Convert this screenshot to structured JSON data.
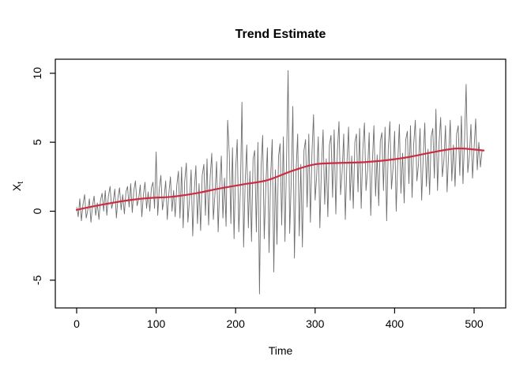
{
  "chart_data": {
    "type": "line",
    "title": "Trend Estimate",
    "xlabel": "Time",
    "ylabel": "X_t",
    "ylabel_main": "X",
    "ylabel_sub": "t",
    "xlim": [
      0,
      512
    ],
    "ylim": [
      -6.5,
      10.5
    ],
    "x_ticks": [
      0,
      100,
      200,
      300,
      400,
      500
    ],
    "y_ticks": [
      10,
      5,
      0,
      -5
    ],
    "grid": false,
    "legend": "none",
    "colors": {
      "observed": "#6e6e6e",
      "trend": "#cd2b42",
      "axis": "#000000"
    },
    "series": [
      {
        "name": "observed",
        "role": "noisy-series",
        "x_start": 0,
        "x_step": 2,
        "values": [
          0.3,
          -0.4,
          0.9,
          -0.7,
          0.5,
          1.2,
          -0.5,
          0.1,
          0.9,
          -0.8,
          0.4,
          1.1,
          -0.3,
          0.6,
          -0.6,
          0.8,
          1.3,
          0.0,
          1.5,
          -0.3,
          1.1,
          1.8,
          0.2,
          0.7,
          1.6,
          -0.5,
          1.0,
          1.7,
          0.1,
          1.2,
          -0.2,
          1.4,
          1.8,
          0.3,
          2.0,
          -0.1,
          1.5,
          2.2,
          0.4,
          0.9,
          1.9,
          -0.4,
          1.2,
          2.1,
          0.2,
          1.4,
          0.0,
          1.7,
          2.1,
          0.2,
          4.3,
          -0.3,
          1.6,
          2.6,
          0.1,
          1.0,
          2.2,
          -0.6,
          1.3,
          2.5,
          0.0,
          1.5,
          -0.4,
          1.9,
          2.9,
          -0.5,
          3.2,
          -1.2,
          2.2,
          3.5,
          -0.8,
          0.9,
          3.0,
          -1.8,
          1.5,
          3.3,
          -0.9,
          2.0,
          -1.4,
          2.6,
          3.4,
          -0.3,
          3.8,
          -1.0,
          2.5,
          4.2,
          -0.6,
          1.2,
          3.6,
          -1.5,
          1.9,
          4.0,
          -0.5,
          2.4,
          -1.1,
          6.6,
          4.1,
          -0.9,
          4.6,
          -2.0,
          3.0,
          5.2,
          -1.5,
          1.5,
          7.9,
          -2.6,
          2.2,
          4.8,
          -1.2,
          2.9,
          -2.2,
          3.8,
          4.4,
          -1.5,
          5.0,
          -6.0,
          3.2,
          5.5,
          -2.0,
          1.8,
          4.6,
          -3.0,
          2.5,
          5.2,
          -4.4,
          3.0,
          -2.4,
          4.0,
          4.9,
          -1.0,
          5.4,
          -2.2,
          3.6,
          10.2,
          -1.6,
          2.2,
          7.6,
          -3.4,
          2.9,
          5.6,
          -1.8,
          3.4,
          -2.6,
          4.4,
          5.2,
          0.3,
          5.6,
          -0.8,
          4.2,
          7.0,
          0.8,
          2.6,
          5.4,
          -1.2,
          3.2,
          5.9,
          0.5,
          3.8,
          -0.4,
          4.8,
          5.5,
          1.0,
          5.9,
          -0.2,
          4.4,
          6.5,
          1.2,
          2.9,
          5.6,
          -0.6,
          3.4,
          6.1,
          0.8,
          4.0,
          0.2,
          5.0,
          5.6,
          1.4,
          6.0,
          0.2,
          4.5,
          6.4,
          1.5,
          3.0,
          5.7,
          -0.3,
          3.5,
          6.2,
          1.1,
          4.1,
          0.4,
          5.1,
          5.7,
          1.5,
          6.1,
          -0.7,
          4.6,
          6.5,
          1.6,
          3.1,
          5.8,
          0.0,
          3.6,
          6.3,
          1.3,
          4.2,
          0.6,
          5.2,
          5.8,
          2.0,
          6.2,
          1.0,
          4.8,
          6.6,
          2.2,
          3.4,
          6.0,
          0.8,
          3.9,
          6.4,
          1.8,
          4.5,
          1.2,
          5.4,
          6.0,
          2.4,
          7.4,
          1.5,
          5.0,
          6.8,
          2.5,
          3.7,
          6.2,
          1.4,
          4.2,
          6.6,
          2.2,
          4.8,
          1.8,
          5.6,
          6.2,
          2.6,
          6.9,
          2.0,
          5.2,
          9.2,
          2.8,
          4.0,
          6.3,
          2.4,
          4.6,
          6.7,
          3.0,
          5.0,
          3.2,
          4.4
        ]
      },
      {
        "name": "trend",
        "role": "smooth-trend-line",
        "x": [
          0,
          30,
          60,
          90,
          120,
          150,
          180,
          210,
          240,
          270,
          300,
          330,
          360,
          390,
          420,
          450,
          480,
          512
        ],
        "y": [
          0.1,
          0.45,
          0.75,
          0.95,
          1.05,
          1.3,
          1.65,
          1.95,
          2.25,
          2.9,
          3.4,
          3.5,
          3.55,
          3.7,
          3.95,
          4.3,
          4.55,
          4.4
        ]
      }
    ]
  }
}
